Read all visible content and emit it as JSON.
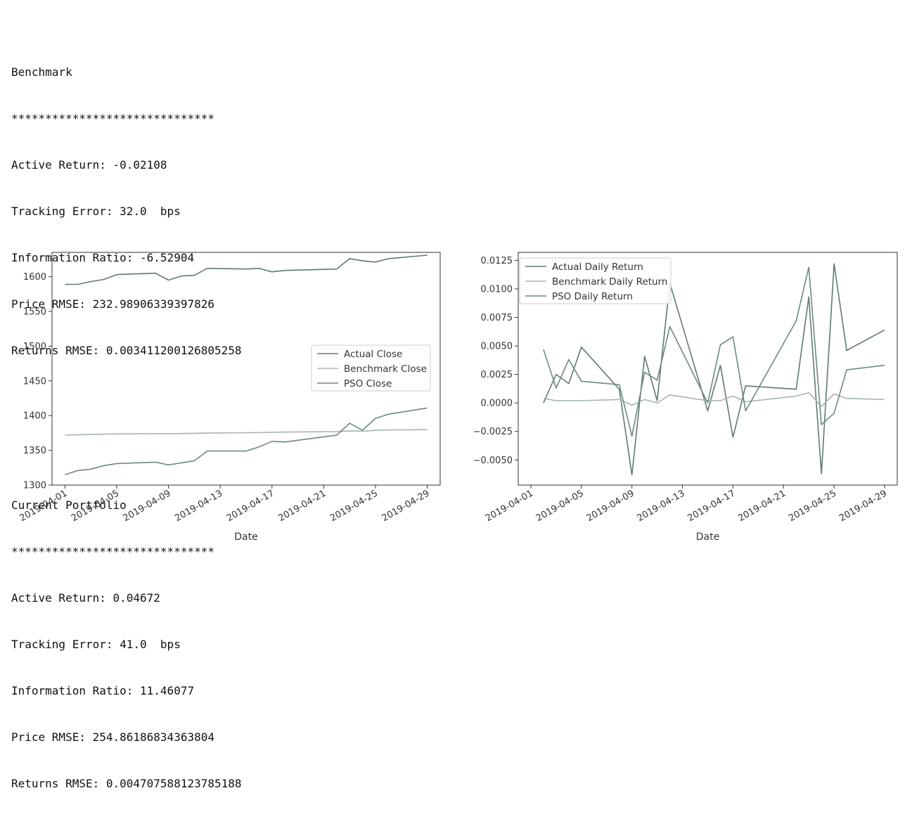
{
  "stats": [
    {
      "title": "Benchmark",
      "separator": "******************************",
      "lines": [
        "Active Return: -0.02108",
        "Tracking Error: 32.0  bps",
        "Information Ratio: -6.52904",
        "Price RMSE: 232.98906339397826",
        "Returns RMSE: 0.003411200126805258"
      ]
    },
    {
      "title": "Current Portfolio",
      "separator": "******************************",
      "lines": [
        "Active Return: 0.04672",
        "Tracking Error: 41.0  bps",
        "Information Ratio: 11.46077",
        "Price RMSE: 254.86186834363804",
        "Returns RMSE: 0.004707588123785188"
      ]
    }
  ],
  "chart_data": [
    {
      "type": "line",
      "xlabel": "Date",
      "ylabel": "",
      "x_tick_labels": [
        "2019-04-01",
        "2019-04-05",
        "2019-04-09",
        "2019-04-13",
        "2019-04-17",
        "2019-04-21",
        "2019-04-25",
        "2019-04-29"
      ],
      "y_ticks": [
        1300,
        1350,
        1400,
        1450,
        1500,
        1550,
        1600
      ],
      "ylim": [
        1300,
        1635
      ],
      "xlim": [
        "2019-03-31",
        "2019-04-30"
      ],
      "legend_position": "center-right",
      "x": [
        "2019-04-01",
        "2019-04-02",
        "2019-04-03",
        "2019-04-04",
        "2019-04-05",
        "2019-04-08",
        "2019-04-09",
        "2019-04-10",
        "2019-04-11",
        "2019-04-12",
        "2019-04-15",
        "2019-04-16",
        "2019-04-17",
        "2019-04-18",
        "2019-04-22",
        "2019-04-23",
        "2019-04-24",
        "2019-04-25",
        "2019-04-26",
        "2019-04-29"
      ],
      "series": [
        {
          "name": "Actual Close",
          "color": "#5f7a72",
          "values": [
            1589,
            1589,
            1593,
            1596,
            1603,
            1605,
            1595,
            1601,
            1602,
            1612,
            1611,
            1612,
            1607,
            1609,
            1611,
            1626,
            1623,
            1621,
            1626,
            1631
          ]
        },
        {
          "name": "Benchmark Close",
          "color": "#a9b5af",
          "values": [
            1372,
            1372.5,
            1373,
            1373.3,
            1373.7,
            1374,
            1373.8,
            1374.2,
            1374.5,
            1375,
            1375.3,
            1375.6,
            1376,
            1376.3,
            1377,
            1378,
            1377.5,
            1378.8,
            1379.3,
            1379.8
          ]
        },
        {
          "name": "PSO Close",
          "color": "#6c8a80",
          "values": [
            1315,
            1321,
            1323,
            1328,
            1331,
            1333,
            1329,
            1332,
            1335,
            1349,
            1349,
            1355,
            1363,
            1362,
            1372,
            1389,
            1379,
            1396,
            1402,
            1411
          ]
        }
      ]
    },
    {
      "type": "line",
      "xlabel": "Date",
      "ylabel": "",
      "x_tick_labels": [
        "2019-04-01",
        "2019-04-05",
        "2019-04-09",
        "2019-04-13",
        "2019-04-17",
        "2019-04-21",
        "2019-04-25",
        "2019-04-29"
      ],
      "y_ticks": [
        -0.005,
        -0.0025,
        0,
        0.0025,
        0.005,
        0.0075,
        0.01,
        0.0125
      ],
      "y_tick_labels": [
        "−0.0050",
        "−0.0025",
        "0.0000",
        "0.0025",
        "0.0050",
        "0.0075",
        "0.0100",
        "0.0125"
      ],
      "ylim": [
        -0.0072,
        0.0132
      ],
      "xlim": [
        "2019-03-31",
        "2019-04-30"
      ],
      "legend_position": "top-left",
      "x": [
        "2019-04-02",
        "2019-04-03",
        "2019-04-04",
        "2019-04-05",
        "2019-04-08",
        "2019-04-09",
        "2019-04-10",
        "2019-04-11",
        "2019-04-12",
        "2019-04-15",
        "2019-04-16",
        "2019-04-17",
        "2019-04-18",
        "2019-04-22",
        "2019-04-23",
        "2019-04-24",
        "2019-04-25",
        "2019-04-26",
        "2019-04-29"
      ],
      "series": [
        {
          "name": "Actual Daily Return",
          "color": "#5f7a72",
          "values": [
            0.0,
            0.0025,
            0.0017,
            0.0049,
            0.0012,
            -0.0063,
            0.0041,
            0.0002,
            0.0105,
            -0.0007,
            0.0033,
            -0.003,
            0.0015,
            0.0012,
            0.0093,
            -0.0062,
            0.0122,
            0.0046,
            0.0064
          ]
        },
        {
          "name": "Benchmark Daily Return",
          "color": "#a9b5af",
          "values": [
            0.0004,
            0.0002,
            0.0002,
            0.0002,
            0.0003,
            -0.0002,
            0.0003,
            0.0,
            0.0007,
            0.0002,
            0.0002,
            0.0006,
            0.0001,
            0.0006,
            0.0009,
            -0.0003,
            0.0008,
            0.0004,
            0.0003
          ]
        },
        {
          "name": "PSO Daily Return",
          "color": "#6c8a80",
          "values": [
            0.0047,
            0.0013,
            0.0038,
            0.0019,
            0.0016,
            -0.0029,
            0.0027,
            0.002,
            0.0067,
            0.0,
            0.0051,
            0.0058,
            -0.0007,
            0.0072,
            0.0119,
            -0.0019,
            -0.0009,
            0.0029,
            0.0033
          ]
        }
      ]
    }
  ]
}
